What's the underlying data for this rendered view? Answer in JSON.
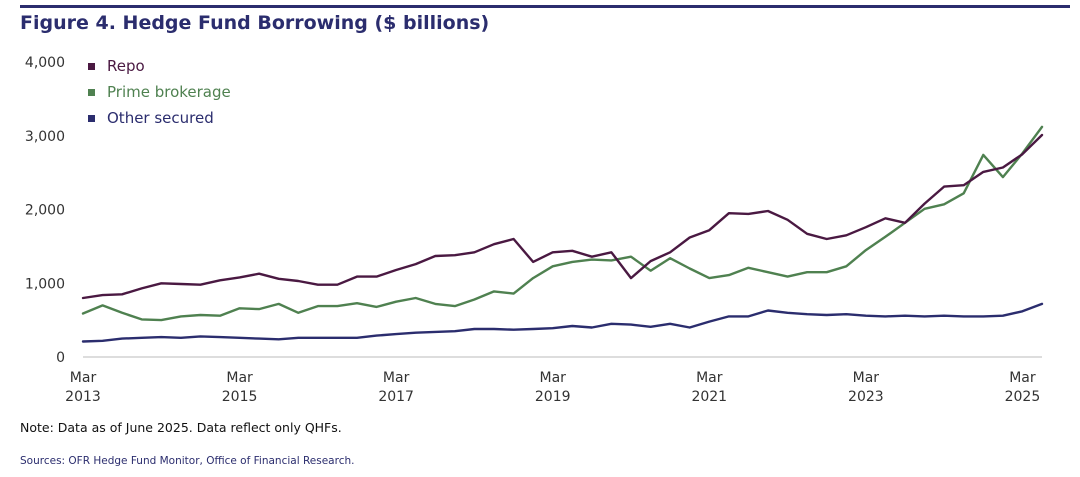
{
  "figure_title": "Figure 4. Hedge Fund Borrowing ($ billions)",
  "note": "Note: Data as of June 2025. Data reflect only QHFs.",
  "sources": "Sources: OFR Hedge Fund Monitor, Office of Financial Research.",
  "colors": {
    "repo": "#4a1942",
    "prime": "#4f8150",
    "other": "#2b2d6e",
    "axis": "#333333",
    "title": "#2b2d6e"
  },
  "chart_data": {
    "type": "line",
    "title": "Hedge Fund Borrowing ($ billions)",
    "xlabel": "",
    "ylabel": "",
    "ylim": [
      0,
      4000
    ],
    "y_ticks": [
      0,
      1000,
      2000,
      3000,
      4000
    ],
    "y_tick_labels": [
      "0",
      "1,000",
      "2,000",
      "3,000",
      "4,000"
    ],
    "x_start": "Mar 2013",
    "x_end": "Jun 2025",
    "x_ticks": [
      {
        "month": "Mar",
        "year": "2013",
        "index": 0
      },
      {
        "month": "Mar",
        "year": "2015",
        "index": 8
      },
      {
        "month": "Mar",
        "year": "2017",
        "index": 16
      },
      {
        "month": "Mar",
        "year": "2019",
        "index": 24
      },
      {
        "month": "Mar",
        "year": "2021",
        "index": 32
      },
      {
        "month": "Mar",
        "year": "2023",
        "index": 40
      },
      {
        "month": "Mar",
        "year": "2025",
        "index": 48
      }
    ],
    "legend": "top-left",
    "series": [
      {
        "name": "Repo",
        "key": "repo",
        "values": [
          800,
          840,
          850,
          930,
          1000,
          990,
          980,
          1040,
          1080,
          1130,
          1060,
          1030,
          980,
          980,
          1090,
          1090,
          1180,
          1260,
          1370,
          1380,
          1420,
          1530,
          1600,
          1290,
          1420,
          1440,
          1360,
          1420,
          1070,
          1300,
          1420,
          1620,
          1720,
          1950,
          1940,
          1980,
          1860,
          1670,
          1600,
          1650,
          1760,
          1880,
          1820,
          2080,
          2310,
          2330,
          2510,
          2570,
          2750,
          3010
        ]
      },
      {
        "name": "Prime brokerage",
        "key": "prime",
        "values": [
          590,
          700,
          600,
          510,
          500,
          550,
          570,
          560,
          660,
          650,
          720,
          600,
          690,
          690,
          730,
          680,
          750,
          800,
          720,
          690,
          780,
          890,
          860,
          1070,
          1230,
          1290,
          1320,
          1310,
          1360,
          1170,
          1340,
          1200,
          1070,
          1110,
          1210,
          1150,
          1090,
          1150,
          1150,
          1230,
          1450,
          1630,
          1820,
          2010,
          2070,
          2220,
          2740,
          2440,
          2760,
          3120
        ]
      },
      {
        "name": "Other secured",
        "key": "other",
        "values": [
          210,
          220,
          250,
          260,
          270,
          260,
          280,
          270,
          260,
          250,
          240,
          260,
          260,
          260,
          260,
          290,
          310,
          330,
          340,
          350,
          380,
          380,
          370,
          380,
          390,
          420,
          400,
          450,
          440,
          410,
          450,
          400,
          480,
          550,
          550,
          630,
          600,
          580,
          570,
          580,
          560,
          550,
          560,
          550,
          560,
          550,
          550,
          560,
          620,
          720
        ]
      }
    ]
  }
}
